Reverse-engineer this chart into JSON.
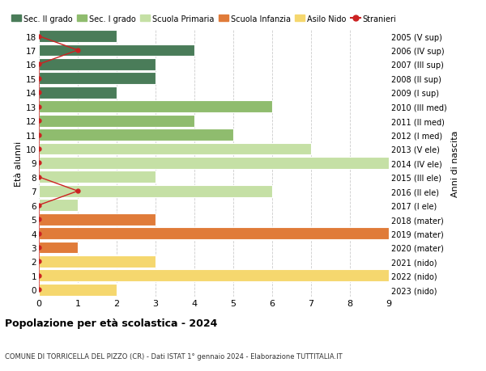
{
  "ages": [
    18,
    17,
    16,
    15,
    14,
    13,
    12,
    11,
    10,
    9,
    8,
    7,
    6,
    5,
    4,
    3,
    2,
    1,
    0
  ],
  "years": [
    "2005 (V sup)",
    "2006 (IV sup)",
    "2007 (III sup)",
    "2008 (II sup)",
    "2009 (I sup)",
    "2010 (III med)",
    "2011 (II med)",
    "2012 (I med)",
    "2013 (V ele)",
    "2014 (IV ele)",
    "2015 (III ele)",
    "2016 (II ele)",
    "2017 (I ele)",
    "2018 (mater)",
    "2019 (mater)",
    "2020 (mater)",
    "2021 (nido)",
    "2022 (nido)",
    "2023 (nido)"
  ],
  "values": [
    2,
    4,
    3,
    3,
    2,
    6,
    4,
    5,
    7,
    9,
    3,
    6,
    1,
    3,
    9,
    1,
    3,
    9,
    2
  ],
  "colors": [
    "#4a7c59",
    "#4a7c59",
    "#4a7c59",
    "#4a7c59",
    "#4a7c59",
    "#8fbc6e",
    "#8fbc6e",
    "#8fbc6e",
    "#c5e0a5",
    "#c5e0a5",
    "#c5e0a5",
    "#c5e0a5",
    "#c5e0a5",
    "#e07b39",
    "#e07b39",
    "#e07b39",
    "#f5d76e",
    "#f5d76e",
    "#f5d76e"
  ],
  "stranieri_x": [
    0,
    1,
    0,
    0,
    0,
    0,
    0,
    0,
    0,
    0,
    0,
    1,
    0,
    0,
    0,
    0,
    0,
    0,
    0
  ],
  "legend_labels": [
    "Sec. II grado",
    "Sec. I grado",
    "Scuola Primaria",
    "Scuola Infanzia",
    "Asilo Nido",
    "Stranieri"
  ],
  "legend_colors": [
    "#4a7c59",
    "#8fbc6e",
    "#c5e0a5",
    "#e07b39",
    "#f5d76e",
    "#cc2222"
  ],
  "ylabel_left": "Età alunni",
  "ylabel_right": "Anni di nascita",
  "title": "Popolazione per età scolastica - 2024",
  "subtitle": "COMUNE DI TORRICELLA DEL PIZZO (CR) - Dati ISTAT 1° gennaio 2024 - Elaborazione TUTTITALIA.IT",
  "xlim": [
    0,
    9
  ],
  "ylim": [
    -0.5,
    18.5
  ],
  "background_color": "#ffffff",
  "grid_color": "#cccccc",
  "bar_height": 0.85
}
